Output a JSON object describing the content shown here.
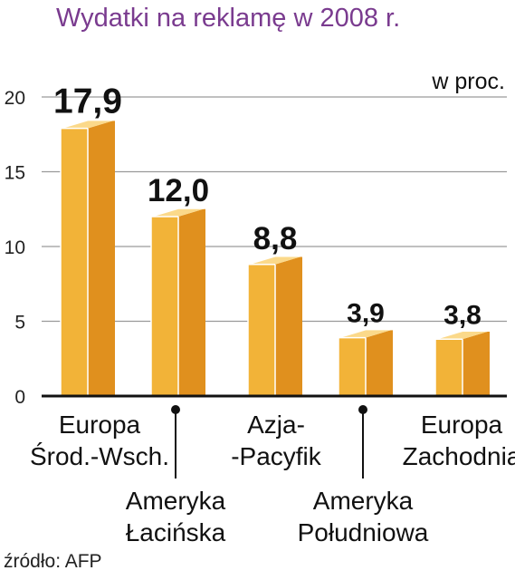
{
  "chart_data": {
    "type": "bar",
    "title": "Wydatki na reklamę w 2008 r.",
    "unit_label": "w proc.",
    "source": "źródło: AFP",
    "ylim": [
      0,
      20
    ],
    "yticks": [
      "0",
      "5",
      "10",
      "15",
      "20"
    ],
    "grid": true,
    "categories": [
      {
        "line1": "Europa",
        "line2": "Środ.-Wsch.",
        "placement": "below"
      },
      {
        "line1": "Ameryka",
        "line2": "Łacińska",
        "placement": "pointer"
      },
      {
        "line1": "Azja-",
        "line2": "-Pacyfik",
        "placement": "below"
      },
      {
        "line1": "Ameryka",
        "line2": "Południowa",
        "placement": "pointer"
      },
      {
        "line1": "Europa",
        "line2": "Zachodnia",
        "placement": "below"
      }
    ],
    "values": [
      17.9,
      12.0,
      8.8,
      3.9,
      3.8
    ],
    "value_labels": [
      "17,9",
      "12,0",
      "8,8",
      "3,9",
      "3,8"
    ],
    "colors": {
      "bar_front": "#f2b338",
      "bar_side": "#e0901e",
      "bar_top": "#fbd98a",
      "bar_edge": "#ffffff",
      "axis": "#111111",
      "grid": "#9a9a9a",
      "title": "#7a3b8f"
    }
  }
}
